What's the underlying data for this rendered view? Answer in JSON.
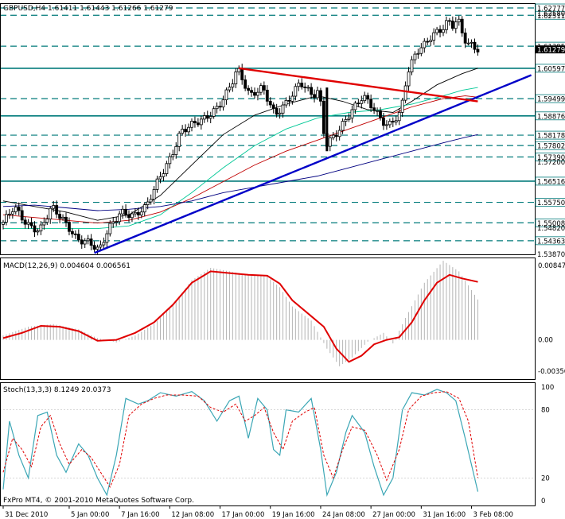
{
  "window": {
    "header": "GBPUSD,H4  1.61411 1.61443 1.61266 1.61279",
    "footer": "FxPro MT4, © 2001-2010 MetaQuotes Software Corp."
  },
  "colors": {
    "background": "#ffffff",
    "candle": "#000000",
    "level_line": "#007a7a",
    "trendline_support": "#0000c8",
    "trendline_resistance": "#e00000",
    "ma_black": "#000000",
    "ma_teal": "#00c896",
    "ma_red": "#c00000",
    "ma_navy": "#000080",
    "macd_signal": "#e00000",
    "macd_histogram": "#b4b4b4",
    "stoch_main": "#3aa6b5",
    "stoch_signal": "#e00000",
    "current_price_tag": "#000000"
  },
  "price_levels": [
    {
      "label": "1.62777",
      "value": 1.62777,
      "style": "dashed"
    },
    {
      "label": "1.62511",
      "value": 1.62511,
      "style": "dashed"
    },
    {
      "label": "1.61395",
      "value": 1.61395,
      "style": "dashed"
    },
    {
      "label": "1.60597",
      "value": 1.60597,
      "style": "solid"
    },
    {
      "label": "1.59499",
      "value": 1.59499,
      "style": "dashed"
    },
    {
      "label": "1.58876",
      "value": 1.58876,
      "style": "solid"
    },
    {
      "label": "1.58178",
      "value": 1.58178,
      "style": "dashed"
    },
    {
      "label": "1.57802",
      "value": 1.57802,
      "style": "dashed"
    },
    {
      "label": "1.57390",
      "value": 1.5739,
      "style": "dashed"
    },
    {
      "label": "1.56516",
      "value": 1.56516,
      "style": "solid"
    },
    {
      "label": "1.55750",
      "value": 1.5575,
      "style": "dashed"
    },
    {
      "label": "1.55008",
      "value": 1.55008,
      "style": "dashed"
    },
    {
      "label": "1.54363",
      "value": 1.54363,
      "style": "dashed"
    }
  ],
  "price_axis_ticks": [
    {
      "label": "1.62580",
      "value": 1.6258
    },
    {
      "label": "1.61290",
      "value": 1.6129
    },
    {
      "label": "1.57200",
      "value": 1.572
    },
    {
      "label": "1.54820",
      "value": 1.5482
    },
    {
      "label": "1.53870",
      "value": 1.5387
    }
  ],
  "current_price": {
    "label": "1.61279",
    "value": 1.61279
  },
  "macd": {
    "label": "MACD(12,26,9) 0.004604 0.006561",
    "ticks": [
      {
        "label": "0.00847",
        "value": 0.00847
      },
      {
        "label": "0.00",
        "value": 0.0
      },
      {
        "label": "-0.00356",
        "value": -0.00356
      }
    ]
  },
  "stoch": {
    "label": "Stoch(13,3,3) 8.1249 20.0373",
    "ticks": [
      {
        "label": "100",
        "value": 100
      },
      {
        "label": "80",
        "value": 80
      },
      {
        "label": "20",
        "value": 20
      },
      {
        "label": "0",
        "value": 0
      }
    ]
  },
  "time_axis": [
    {
      "label": "31 Dec 2010",
      "bar": 0
    },
    {
      "label": "5 Jan 00:00",
      "bar": 21
    },
    {
      "label": "7 Jan 16:00",
      "bar": 37
    },
    {
      "label": "12 Jan 08:00",
      "bar": 53
    },
    {
      "label": "17 Jan 00:00",
      "bar": 69
    },
    {
      "label": "19 Jan 16:00",
      "bar": 85
    },
    {
      "label": "24 Jan 08:00",
      "bar": 101
    },
    {
      "label": "27 Jan 00:00",
      "bar": 117
    },
    {
      "label": "31 Jan 16:00",
      "bar": 133
    },
    {
      "label": "3 Feb 08:00",
      "bar": 149
    }
  ],
  "chart_data": {
    "type": "line",
    "symbol": "GBPUSD",
    "timeframe": "H4",
    "close_key_points": [
      [
        0,
        1.5495
      ],
      [
        4,
        1.556
      ],
      [
        8,
        1.5495
      ],
      [
        12,
        1.547
      ],
      [
        16,
        1.556
      ],
      [
        20,
        1.5505
      ],
      [
        24,
        1.544
      ],
      [
        28,
        1.543
      ],
      [
        31,
        1.54
      ],
      [
        34,
        1.548
      ],
      [
        38,
        1.554
      ],
      [
        42,
        1.5525
      ],
      [
        46,
        1.556
      ],
      [
        50,
        1.566
      ],
      [
        54,
        1.574
      ],
      [
        57,
        1.583
      ],
      [
        61,
        1.586
      ],
      [
        65,
        1.588
      ],
      [
        69,
        1.592
      ],
      [
        73,
        1.6
      ],
      [
        75,
        1.606
      ],
      [
        79,
        1.596
      ],
      [
        83,
        1.599
      ],
      [
        87,
        1.589
      ],
      [
        91,
        1.594
      ],
      [
        95,
        1.601
      ],
      [
        99,
        1.596
      ],
      [
        101,
        1.598
      ],
      [
        103,
        1.578
      ],
      [
        107,
        1.583
      ],
      [
        111,
        1.59
      ],
      [
        115,
        1.596
      ],
      [
        118,
        1.592
      ],
      [
        121,
        1.587
      ],
      [
        123,
        1.585
      ],
      [
        127,
        1.59
      ],
      [
        129,
        1.604
      ],
      [
        132,
        1.612
      ],
      [
        135,
        1.615
      ],
      [
        137,
        1.618
      ],
      [
        140,
        1.62
      ],
      [
        142,
        1.623
      ],
      [
        144,
        1.621
      ],
      [
        145,
        1.625
      ],
      [
        146,
        1.62
      ],
      [
        148,
        1.615
      ],
      [
        150,
        1.614
      ],
      [
        151,
        1.6128
      ]
    ],
    "moving_averages": [
      {
        "color": "black",
        "points": [
          [
            0,
            1.558
          ],
          [
            10,
            1.556
          ],
          [
            20,
            1.554
          ],
          [
            30,
            1.551
          ],
          [
            40,
            1.553
          ],
          [
            50,
            1.56
          ],
          [
            60,
            1.571
          ],
          [
            70,
            1.582
          ],
          [
            80,
            1.589
          ],
          [
            90,
            1.593
          ],
          [
            100,
            1.596
          ],
          [
            108,
            1.594
          ],
          [
            116,
            1.591
          ],
          [
            124,
            1.59
          ],
          [
            130,
            1.594
          ],
          [
            138,
            1.6
          ],
          [
            146,
            1.604
          ],
          [
            151,
            1.606
          ]
        ]
      },
      {
        "color": "teal",
        "points": [
          [
            0,
            1.548
          ],
          [
            10,
            1.548
          ],
          [
            20,
            1.548
          ],
          [
            30,
            1.548
          ],
          [
            40,
            1.549
          ],
          [
            50,
            1.553
          ],
          [
            60,
            1.561
          ],
          [
            70,
            1.57
          ],
          [
            80,
            1.578
          ],
          [
            90,
            1.584
          ],
          [
            100,
            1.588
          ],
          [
            110,
            1.59
          ],
          [
            120,
            1.591
          ],
          [
            130,
            1.593
          ],
          [
            140,
            1.596
          ],
          [
            146,
            1.598
          ],
          [
            151,
            1.599
          ]
        ]
      },
      {
        "color": "red",
        "points": [
          [
            0,
            1.553
          ],
          [
            10,
            1.552
          ],
          [
            20,
            1.551
          ],
          [
            30,
            1.55
          ],
          [
            40,
            1.551
          ],
          [
            50,
            1.554
          ],
          [
            60,
            1.559
          ],
          [
            70,
            1.565
          ],
          [
            80,
            1.571
          ],
          [
            90,
            1.576
          ],
          [
            100,
            1.58
          ],
          [
            110,
            1.584
          ],
          [
            120,
            1.588
          ],
          [
            130,
            1.592
          ],
          [
            140,
            1.595
          ],
          [
            147,
            1.596
          ],
          [
            151,
            1.5955
          ]
        ]
      },
      {
        "color": "navy",
        "points": [
          [
            0,
            1.556
          ],
          [
            10,
            1.5565
          ],
          [
            20,
            1.5555
          ],
          [
            30,
            1.5545
          ],
          [
            40,
            1.555
          ],
          [
            50,
            1.556
          ],
          [
            60,
            1.558
          ],
          [
            70,
            1.561
          ],
          [
            80,
            1.563
          ],
          [
            90,
            1.565
          ],
          [
            100,
            1.567
          ],
          [
            110,
            1.57
          ],
          [
            120,
            1.573
          ],
          [
            130,
            1.576
          ],
          [
            140,
            1.579
          ],
          [
            147,
            1.581
          ],
          [
            151,
            1.582
          ]
        ]
      }
    ],
    "trendlines": [
      {
        "name": "support",
        "from": [
          29,
          1.5392
        ],
        "to": [
          168,
          1.6035
        ]
      },
      {
        "name": "resistance",
        "from": [
          75,
          1.606
        ],
        "to": [
          151,
          1.594
        ]
      }
    ],
    "macd_histogram": [
      [
        0,
        0.0005
      ],
      [
        8,
        0.0015
      ],
      [
        16,
        0.0018
      ],
      [
        24,
        0.0012
      ],
      [
        30,
        0.0002
      ],
      [
        36,
        -0.0003
      ],
      [
        42,
        0.0005
      ],
      [
        48,
        0.0018
      ],
      [
        54,
        0.004
      ],
      [
        60,
        0.0068
      ],
      [
        66,
        0.0082
      ],
      [
        72,
        0.0078
      ],
      [
        78,
        0.0074
      ],
      [
        84,
        0.0072
      ],
      [
        88,
        0.006
      ],
      [
        92,
        0.0038
      ],
      [
        98,
        0.0022
      ],
      [
        103,
        -0.001
      ],
      [
        107,
        -0.003
      ],
      [
        111,
        -0.002
      ],
      [
        116,
        -0.0002
      ],
      [
        121,
        0.0008
      ],
      [
        124,
        -0.0004
      ],
      [
        128,
        0.0025
      ],
      [
        134,
        0.0065
      ],
      [
        140,
        0.009
      ],
      [
        145,
        0.0078
      ],
      [
        151,
        0.0046
      ]
    ],
    "macd_signal": [
      [
        0,
        0.0002
      ],
      [
        6,
        0.0008
      ],
      [
        12,
        0.0016
      ],
      [
        18,
        0.0015
      ],
      [
        24,
        0.001
      ],
      [
        30,
        -0.0001
      ],
      [
        36,
        0.0
      ],
      [
        42,
        0.0008
      ],
      [
        48,
        0.002
      ],
      [
        54,
        0.004
      ],
      [
        60,
        0.0065
      ],
      [
        66,
        0.0078
      ],
      [
        72,
        0.0076
      ],
      [
        78,
        0.0074
      ],
      [
        84,
        0.0073
      ],
      [
        88,
        0.0064
      ],
      [
        92,
        0.0045
      ],
      [
        98,
        0.0027
      ],
      [
        102,
        0.0015
      ],
      [
        106,
        -0.001
      ],
      [
        110,
        -0.0025
      ],
      [
        114,
        -0.0018
      ],
      [
        118,
        -0.0005
      ],
      [
        122,
        0.0
      ],
      [
        126,
        0.0003
      ],
      [
        130,
        0.002
      ],
      [
        134,
        0.0045
      ],
      [
        138,
        0.0065
      ],
      [
        142,
        0.0074
      ],
      [
        146,
        0.007
      ],
      [
        151,
        0.0066
      ]
    ],
    "stoch_main": [
      [
        0,
        10
      ],
      [
        2,
        70
      ],
      [
        5,
        40
      ],
      [
        8,
        20
      ],
      [
        11,
        75
      ],
      [
        14,
        78
      ],
      [
        17,
        40
      ],
      [
        20,
        25
      ],
      [
        24,
        50
      ],
      [
        27,
        40
      ],
      [
        30,
        20
      ],
      [
        33,
        5
      ],
      [
        36,
        40
      ],
      [
        39,
        90
      ],
      [
        43,
        85
      ],
      [
        46,
        88
      ],
      [
        50,
        95
      ],
      [
        55,
        92
      ],
      [
        60,
        96
      ],
      [
        64,
        88
      ],
      [
        68,
        70
      ],
      [
        72,
        88
      ],
      [
        75,
        92
      ],
      [
        78,
        55
      ],
      [
        81,
        90
      ],
      [
        84,
        80
      ],
      [
        86,
        45
      ],
      [
        88,
        40
      ],
      [
        90,
        80
      ],
      [
        94,
        78
      ],
      [
        98,
        90
      ],
      [
        101,
        45
      ],
      [
        103,
        5
      ],
      [
        106,
        25
      ],
      [
        109,
        60
      ],
      [
        111,
        75
      ],
      [
        115,
        60
      ],
      [
        118,
        30
      ],
      [
        121,
        5
      ],
      [
        124,
        20
      ],
      [
        127,
        80
      ],
      [
        130,
        95
      ],
      [
        134,
        93
      ],
      [
        138,
        98
      ],
      [
        141,
        95
      ],
      [
        144,
        88
      ],
      [
        147,
        55
      ],
      [
        151,
        8
      ]
    ],
    "stoch_signal": [
      [
        0,
        25
      ],
      [
        3,
        55
      ],
      [
        6,
        45
      ],
      [
        9,
        30
      ],
      [
        12,
        65
      ],
      [
        15,
        75
      ],
      [
        18,
        50
      ],
      [
        21,
        32
      ],
      [
        25,
        45
      ],
      [
        28,
        38
      ],
      [
        31,
        25
      ],
      [
        34,
        12
      ],
      [
        37,
        32
      ],
      [
        40,
        75
      ],
      [
        44,
        85
      ],
      [
        48,
        90
      ],
      [
        52,
        93
      ],
      [
        57,
        93
      ],
      [
        62,
        92
      ],
      [
        66,
        82
      ],
      [
        70,
        78
      ],
      [
        74,
        85
      ],
      [
        77,
        70
      ],
      [
        80,
        75
      ],
      [
        83,
        82
      ],
      [
        86,
        60
      ],
      [
        89,
        45
      ],
      [
        92,
        70
      ],
      [
        96,
        78
      ],
      [
        99,
        82
      ],
      [
        102,
        40
      ],
      [
        105,
        20
      ],
      [
        108,
        45
      ],
      [
        111,
        65
      ],
      [
        115,
        62
      ],
      [
        119,
        40
      ],
      [
        122,
        18
      ],
      [
        126,
        45
      ],
      [
        129,
        80
      ],
      [
        133,
        92
      ],
      [
        137,
        95
      ],
      [
        141,
        96
      ],
      [
        145,
        90
      ],
      [
        148,
        70
      ],
      [
        151,
        20
      ]
    ],
    "price_range": [
      1.5387,
      1.6295
    ],
    "macd_range": [
      -0.00356,
      0.00847
    ],
    "stoch_range": [
      0,
      100
    ]
  }
}
